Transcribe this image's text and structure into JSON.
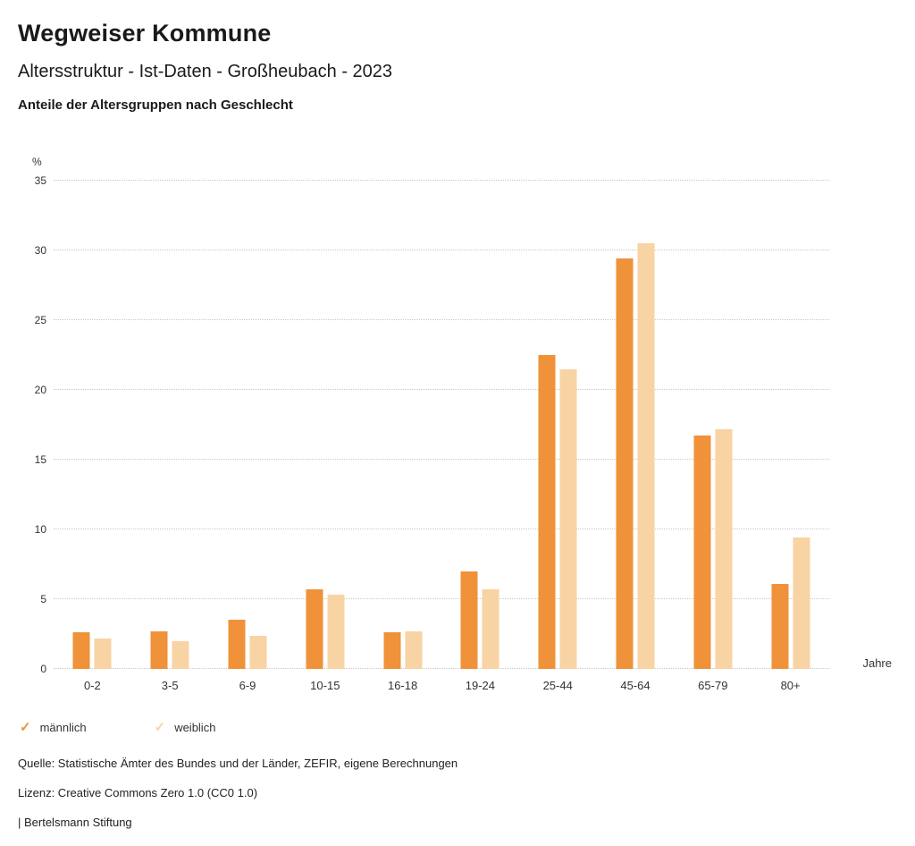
{
  "page": {
    "title": "Wegweiser Kommune",
    "subtitle": "Altersstruktur - Ist-Daten - Großheubach - 2023",
    "chart_heading": "Anteile der Altersgruppen nach Geschlecht"
  },
  "chart_data": {
    "type": "bar",
    "title": "Anteile der Altersgruppen nach Geschlecht",
    "y_unit": "%",
    "x_unit": "Jahre",
    "ylim": [
      0,
      35
    ],
    "yticks": [
      0,
      5,
      10,
      15,
      20,
      25,
      30,
      35
    ],
    "grid": "horizontal-dotted",
    "legend_position": "bottom-left",
    "categories": [
      "0-2",
      "3-5",
      "6-9",
      "10-15",
      "16-18",
      "19-24",
      "25-44",
      "45-64",
      "65-79",
      "80+"
    ],
    "series": [
      {
        "name": "männlich",
        "color": "#EF9239",
        "values": [
          2.6,
          2.7,
          3.5,
          5.7,
          2.6,
          7.0,
          22.5,
          29.4,
          16.7,
          6.1
        ]
      },
      {
        "name": "weiblich",
        "color": "#F8D3A3",
        "values": [
          2.2,
          2.0,
          2.4,
          5.3,
          2.7,
          5.7,
          21.5,
          30.5,
          17.2,
          9.4
        ]
      }
    ]
  },
  "legend": {
    "check_glyph": "✓",
    "items": [
      {
        "label": "männlich",
        "color": "#EF9239"
      },
      {
        "label": "weiblich",
        "color": "#F8D3A3"
      }
    ]
  },
  "footer": {
    "source": "Quelle: Statistische Ämter des Bundes und der Länder, ZEFIR, eigene Berechnungen",
    "license": "Lizenz: Creative Commons Zero 1.0 (CC0 1.0)",
    "brand": "| Bertelsmann Stiftung"
  }
}
